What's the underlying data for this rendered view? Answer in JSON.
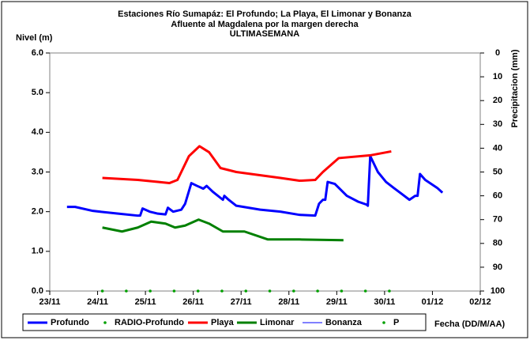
{
  "chart_data": {
    "type": "line",
    "title": "Estaciones Río Sumapáz: El Profundo; La Playa, El Limonar y Bonanza",
    "subtitle": "Afluente al Magdalena por la margen derecha",
    "subtitle2": "ULTIMASEMANA",
    "ylabel": "Nivel (m)",
    "y2label": "Precipitacion (mm)",
    "xlabel": "Fecha (DD/M/AA)",
    "xlim": [
      0,
      9
    ],
    "xticks": [
      {
        "value": 0,
        "label": "23/11"
      },
      {
        "value": 1,
        "label": "24/11"
      },
      {
        "value": 2,
        "label": "25/11"
      },
      {
        "value": 3,
        "label": "26/11"
      },
      {
        "value": 4,
        "label": "27/11"
      },
      {
        "value": 5,
        "label": "28/11"
      },
      {
        "value": 6,
        "label": "29/11"
      },
      {
        "value": 7,
        "label": "30/11"
      },
      {
        "value": 8,
        "label": "01/12"
      },
      {
        "value": 9,
        "label": "02/12"
      }
    ],
    "ylim": [
      0,
      6
    ],
    "yticks": [
      {
        "value": 0,
        "label": "0.0"
      },
      {
        "value": 1,
        "label": "1.0"
      },
      {
        "value": 2,
        "label": "2.0"
      },
      {
        "value": 3,
        "label": "3.0"
      },
      {
        "value": 4,
        "label": "4.0"
      },
      {
        "value": 5,
        "label": "5.0"
      },
      {
        "value": 6,
        "label": "6.0"
      }
    ],
    "y2lim": [
      100,
      0
    ],
    "y2ticks": [
      0,
      10,
      20,
      30,
      40,
      50,
      60,
      70,
      80,
      90,
      100
    ],
    "grid": false,
    "series": [
      {
        "name": "Profundo",
        "color": "#0000ff",
        "marker": "line",
        "line_width": 3,
        "x": [
          0.36,
          0.53,
          0.9,
          1.43,
          1.84,
          1.89,
          1.94,
          2.09,
          2.26,
          2.42,
          2.47,
          2.58,
          2.75,
          2.83,
          2.96,
          3.08,
          3.21,
          3.28,
          3.41,
          3.62,
          3.65,
          3.74,
          3.9,
          4.4,
          4.82,
          5.22,
          5.55,
          5.63,
          5.71,
          5.76,
          5.81,
          5.96,
          6.21,
          6.45,
          6.62,
          6.65,
          6.7,
          6.86,
          7.03,
          7.19,
          7.52,
          7.64,
          7.69,
          7.74,
          7.85,
          8.1,
          8.21
        ],
        "values": [
          2.12,
          2.12,
          2.02,
          1.95,
          1.9,
          1.9,
          2.08,
          2.0,
          1.95,
          1.93,
          2.1,
          2.0,
          2.05,
          2.2,
          2.72,
          2.65,
          2.58,
          2.65,
          2.5,
          2.3,
          2.4,
          2.3,
          2.15,
          2.05,
          2.0,
          1.92,
          1.9,
          2.2,
          2.3,
          2.3,
          2.75,
          2.7,
          2.4,
          2.25,
          2.18,
          2.15,
          3.4,
          3.0,
          2.75,
          2.6,
          2.3,
          2.4,
          2.4,
          2.95,
          2.8,
          2.6,
          2.48
        ]
      },
      {
        "name": "RADIO-Profundo",
        "color": "#00a000",
        "marker": "dot",
        "x": [
          1.1,
          1.6,
          2.1,
          2.6,
          3.1,
          3.6,
          4.1,
          4.6,
          5.1,
          5.6,
          6.1,
          6.6,
          7.1
        ],
        "values": [
          0,
          0,
          0,
          0,
          0,
          0,
          0,
          0,
          0,
          0,
          0,
          0,
          0
        ]
      },
      {
        "name": "Playa",
        "color": "#ff0000",
        "marker": "line",
        "line_width": 3,
        "x": [
          1.1,
          1.84,
          2.26,
          2.5,
          2.67,
          2.91,
          3.13,
          3.33,
          3.57,
          3.9,
          4.82,
          5.22,
          5.55,
          5.71,
          6.04,
          6.7,
          7.14
        ],
        "values": [
          2.85,
          2.8,
          2.75,
          2.72,
          2.8,
          3.4,
          3.65,
          3.5,
          3.1,
          3.0,
          2.85,
          2.78,
          2.8,
          3.0,
          3.35,
          3.42,
          3.52
        ]
      },
      {
        "name": "Limonar",
        "color": "#008000",
        "marker": "line",
        "line_width": 3,
        "x": [
          1.1,
          1.51,
          1.84,
          2.12,
          2.42,
          2.62,
          2.83,
          3.11,
          3.33,
          3.62,
          4.07,
          4.56,
          5.22,
          6.14
        ],
        "values": [
          1.6,
          1.5,
          1.6,
          1.75,
          1.7,
          1.6,
          1.65,
          1.8,
          1.7,
          1.5,
          1.5,
          1.3,
          1.3,
          1.28
        ]
      },
      {
        "name": "Bonanza",
        "color": "#0000ff",
        "marker": "line",
        "line_width": 1,
        "x": [],
        "values": []
      },
      {
        "name": "P",
        "color": "#00a000",
        "marker": "dot",
        "x": [],
        "values": []
      }
    ]
  }
}
